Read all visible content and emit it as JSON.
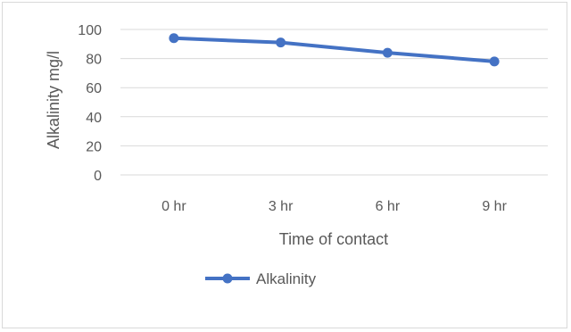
{
  "chart_data": {
    "type": "line",
    "categories": [
      "0 hr",
      "3 hr",
      "6 hr",
      "9 hr"
    ],
    "series": [
      {
        "name": "Alkalinity",
        "values": [
          94,
          91,
          84,
          78
        ],
        "color": "#4472c4"
      }
    ],
    "title": "",
    "xlabel": "Time of contact",
    "ylabel": "Alkalinity mg/l",
    "ylim": [
      0,
      100
    ],
    "yticks": [
      0,
      20,
      40,
      60,
      80,
      100
    ],
    "grid": true,
    "legend": "bottom"
  }
}
